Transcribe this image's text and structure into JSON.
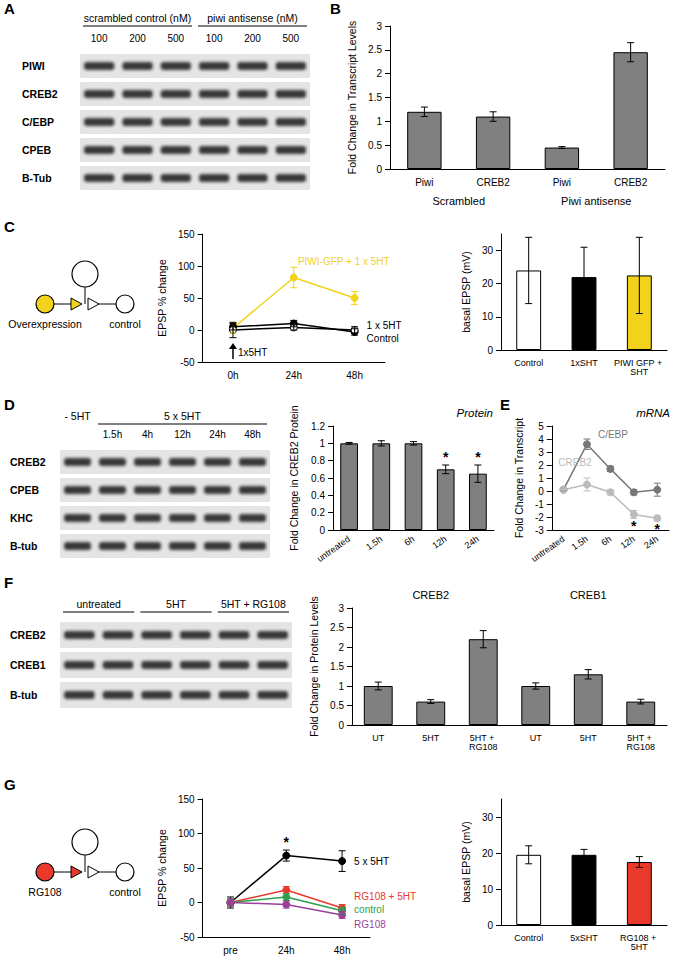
{
  "panels": [
    "A",
    "B",
    "C",
    "D",
    "E",
    "F",
    "G"
  ],
  "blots": {
    "A": {
      "header_groups": [
        "scrambled control (nM)",
        "piwi antisense (nM)"
      ],
      "lanes": [
        "100",
        "200",
        "500",
        "100",
        "200",
        "500"
      ],
      "rows": [
        "PIWI",
        "CREB2",
        "C/EBP",
        "CPEB",
        "B-Tub"
      ]
    },
    "D": {
      "header_groups": [
        "- 5HT",
        "5 x 5HT"
      ],
      "lanes": [
        "1.5h",
        "4h",
        "12h",
        "24h",
        "48h"
      ],
      "rows": [
        "CREB2",
        "CPEB",
        "KHC",
        "B-tub"
      ]
    },
    "F": {
      "header_groups": [
        "untreated",
        "5HT",
        "5HT + RG108"
      ],
      "rows": [
        "CREB2",
        "CREB1",
        "B-tub"
      ]
    }
  },
  "diagrams": {
    "C": {
      "color": "#f2d21b",
      "labels": [
        "Overexpression",
        "control"
      ]
    },
    "G": {
      "color": "#e8392b",
      "labels": [
        "RG108",
        "control"
      ]
    }
  },
  "chart_data": [
    {
      "type": "bar",
      "ylabel": "Fold Change in Transcript Levels",
      "categories": [
        "Piwi",
        "CREB2",
        "Piwi",
        "CREB2"
      ],
      "category_groups": [
        "Scrambled",
        "Piwi antisense"
      ],
      "values": [
        1.2,
        1.1,
        0.45,
        2.45
      ],
      "errors": [
        0.1,
        0.1,
        0.02,
        0.2
      ],
      "color": "#808080",
      "ylim": [
        0,
        3
      ],
      "yticks": [
        0,
        0.5,
        1,
        1.5,
        2,
        2.5,
        3
      ]
    },
    {
      "type": "line",
      "ylabel": "EPSP % change",
      "categories": [
        "0h",
        "24h",
        "48h"
      ],
      "series": [
        {
          "name": "PIWI-GFP + 1 x 5HT",
          "color": "#f2d21b",
          "values": [
            3,
            82,
            50
          ],
          "errors": [
            8,
            16,
            10
          ]
        },
        {
          "name": "1 x 5HT",
          "color": "#000000",
          "values": [
            5,
            10,
            -3
          ],
          "errors": [
            5,
            5,
            5
          ]
        },
        {
          "name": "Control",
          "color": "#ffffff",
          "values": [
            0,
            4,
            0
          ],
          "errors": [
            12,
            4,
            5
          ]
        }
      ],
      "marker": "circle",
      "ylim": [
        -50,
        150
      ],
      "yticks": [
        -50,
        0,
        50,
        100,
        150
      ],
      "annotations": [
        {
          "category": "0h",
          "text": "1x5HT"
        }
      ]
    },
    {
      "type": "bar",
      "ylabel": "basal EPSP (mV)",
      "categories": [
        "Control",
        "1xSHT",
        "PIWI GFP + SHT"
      ],
      "values": [
        24,
        22,
        22.5
      ],
      "errors": [
        10,
        9,
        11.5
      ],
      "colors": [
        "#ffffff",
        "#000000",
        "#f2d21b"
      ],
      "ylim": [
        0,
        35
      ],
      "yticks": [
        0,
        10,
        20,
        30
      ]
    },
    {
      "type": "bar",
      "title": "Protein",
      "ylabel": "Fold Change in CREB2 Protein",
      "categories": [
        "untreated",
        "1.5h",
        "6h",
        "12h",
        "24h"
      ],
      "values": [
        1,
        1,
        1,
        0.7,
        0.65
      ],
      "errors": [
        0.01,
        0.03,
        0.02,
        0.05,
        0.1
      ],
      "color": "#808080",
      "ylim": [
        0,
        1.2
      ],
      "yticks": [
        0,
        0.2,
        0.4,
        0.6,
        0.8,
        1,
        1.2
      ],
      "annotations": [
        {
          "category": "12h",
          "text": "*"
        },
        {
          "category": "24h",
          "text": "*"
        }
      ]
    },
    {
      "type": "line",
      "title": "mRNA",
      "ylabel": "Fold Change in Transcript",
      "categories": [
        "untreated",
        "1.5h",
        "6h",
        "12h",
        "24h"
      ],
      "series": [
        {
          "name": "C/EBP",
          "color": "#777777",
          "values": [
            0.1,
            3.6,
            1.7,
            -0.1,
            0.1
          ],
          "errors": [
            0.1,
            0.4,
            0.2,
            0.2,
            0.5
          ]
        },
        {
          "name": "CREB2",
          "color": "#bbbbbb",
          "values": [
            0.1,
            0.5,
            -0.1,
            -1.8,
            -2.1
          ],
          "errors": [
            0.1,
            0.5,
            0.2,
            0.3,
            0.2
          ]
        }
      ],
      "marker": "circle",
      "ylim": [
        -3,
        5
      ],
      "yticks": [
        -3,
        -2,
        -1,
        0,
        1,
        2,
        3,
        4,
        5
      ],
      "annotations": [
        {
          "category": "12h",
          "series": "CREB2",
          "text": "*"
        },
        {
          "category": "24h",
          "series": "CREB2",
          "text": "*"
        }
      ]
    },
    {
      "type": "bar",
      "ylabel": "Fold Change in Protein Levels",
      "categories": [
        "UT",
        "5HT",
        "5HT + RG108",
        "UT",
        "5HT",
        "5HT + RG108"
      ],
      "category_groups": [
        "CREB2",
        "CREB1"
      ],
      "values": [
        1,
        0.6,
        2.2,
        1,
        1.3,
        0.6
      ],
      "errors": [
        0.1,
        0.05,
        0.22,
        0.08,
        0.12,
        0.06
      ],
      "color": "#808080",
      "ylim": [
        0,
        3
      ],
      "yticks": [
        0,
        0.5,
        1,
        1.5,
        2,
        2.5,
        3
      ]
    },
    {
      "type": "line",
      "ylabel": "EPSP % change",
      "categories": [
        "pre",
        "24h",
        "48h"
      ],
      "series": [
        {
          "name": "5 x 5HT",
          "color": "#000000",
          "values": [
            0,
            68,
            60
          ],
          "errors": [
            8,
            8,
            15
          ]
        },
        {
          "name": "RG108 + 5HT",
          "color": "#e8392b",
          "values": [
            0,
            18,
            -8
          ],
          "errors": [
            5,
            5,
            5
          ]
        },
        {
          "name": "control",
          "color": "#2e9e4f",
          "values": [
            0,
            8,
            -12
          ],
          "errors": [
            5,
            5,
            5
          ]
        },
        {
          "name": "RG108",
          "color": "#9b3f9b",
          "values": [
            0,
            -3,
            -18
          ],
          "errors": [
            5,
            5,
            5
          ]
        }
      ],
      "marker": "circle",
      "ylim": [
        -50,
        150
      ],
      "yticks": [
        -50,
        0,
        50,
        100,
        150
      ],
      "annotations": [
        {
          "category": "24h",
          "series": "5 x 5HT",
          "text": "*"
        }
      ]
    },
    {
      "type": "bar",
      "ylabel": "basal EPSP (mV)",
      "categories": [
        "Control",
        "5xSHT",
        "RG108 + 5HT"
      ],
      "values": [
        19.5,
        19.5,
        17.5
      ],
      "errors": [
        2.5,
        1.5,
        1.5
      ],
      "colors": [
        "#ffffff",
        "#000000",
        "#e8392b"
      ],
      "ylim": [
        0,
        35
      ],
      "yticks": [
        0,
        10,
        20,
        30
      ]
    }
  ]
}
